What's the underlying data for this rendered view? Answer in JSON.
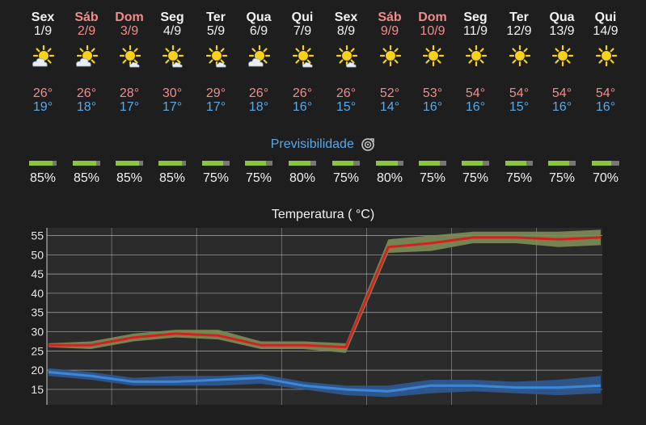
{
  "forecast": {
    "days": [
      {
        "name": "Sex",
        "date": "1/9",
        "max": "26°",
        "min": "19°",
        "weekend": false,
        "icon": "partly-cloudy-sun-icon"
      },
      {
        "name": "Sáb",
        "date": "2/9",
        "max": "26°",
        "min": "18°",
        "weekend": true,
        "icon": "partly-cloudy-sun-icon"
      },
      {
        "name": "Dom",
        "date": "3/9",
        "max": "28°",
        "min": "17°",
        "weekend": true,
        "icon": "sun-small-cloud-icon"
      },
      {
        "name": "Seg",
        "date": "4/9",
        "max": "30°",
        "min": "17°",
        "weekend": false,
        "icon": "sun-small-cloud-icon"
      },
      {
        "name": "Ter",
        "date": "5/9",
        "max": "29°",
        "min": "17°",
        "weekend": false,
        "icon": "sun-small-cloud-icon"
      },
      {
        "name": "Qua",
        "date": "6/9",
        "max": "26°",
        "min": "18°",
        "weekend": false,
        "icon": "partly-cloudy-sun-icon"
      },
      {
        "name": "Qui",
        "date": "7/9",
        "max": "26°",
        "min": "16°",
        "weekend": false,
        "icon": "sun-small-cloud-icon"
      },
      {
        "name": "Sex",
        "date": "8/9",
        "max": "26°",
        "min": "15°",
        "weekend": false,
        "icon": "sun-small-cloud-icon"
      },
      {
        "name": "Sáb",
        "date": "9/9",
        "max": "52°",
        "min": "14°",
        "weekend": true,
        "icon": "sun-icon"
      },
      {
        "name": "Dom",
        "date": "10/9",
        "max": "53°",
        "min": "16°",
        "weekend": true,
        "icon": "sun-icon"
      },
      {
        "name": "Seg",
        "date": "11/9",
        "max": "54°",
        "min": "16°",
        "weekend": false,
        "icon": "sun-icon"
      },
      {
        "name": "Ter",
        "date": "12/9",
        "max": "54°",
        "min": "15°",
        "weekend": false,
        "icon": "sun-icon"
      },
      {
        "name": "Qua",
        "date": "13/9",
        "max": "54°",
        "min": "16°",
        "weekend": false,
        "icon": "sun-icon"
      },
      {
        "name": "Qui",
        "date": "14/9",
        "max": "54°",
        "min": "16°",
        "weekend": false,
        "icon": "sun-icon"
      }
    ]
  },
  "predictability": {
    "title": "Previsibilidade",
    "icon": "target-refresh-icon",
    "colors": {
      "fill": "#8cc63f",
      "track": "#777777"
    },
    "values": [
      {
        "label": "85%",
        "fraction": 0.85
      },
      {
        "label": "85%",
        "fraction": 0.85
      },
      {
        "label": "85%",
        "fraction": 0.85
      },
      {
        "label": "85%",
        "fraction": 0.85
      },
      {
        "label": "75%",
        "fraction": 0.75
      },
      {
        "label": "75%",
        "fraction": 0.75
      },
      {
        "label": "80%",
        "fraction": 0.8
      },
      {
        "label": "75%",
        "fraction": 0.75
      },
      {
        "label": "80%",
        "fraction": 0.8
      },
      {
        "label": "75%",
        "fraction": 0.75
      },
      {
        "label": "75%",
        "fraction": 0.75
      },
      {
        "label": "75%",
        "fraction": 0.75
      },
      {
        "label": "75%",
        "fraction": 0.75
      },
      {
        "label": "70%",
        "fraction": 0.7
      }
    ]
  },
  "chart_data": {
    "type": "line",
    "title": "Temperatura ( °C)",
    "xlabel": "",
    "ylabel": "",
    "ylim": [
      11,
      57
    ],
    "yticks": [
      15,
      20,
      25,
      30,
      35,
      40,
      45,
      50,
      55
    ],
    "grid": true,
    "legend": "none",
    "x": [
      "1/9",
      "2/9",
      "3/9",
      "4/9",
      "5/9",
      "6/9",
      "7/9",
      "8/9",
      "9/9",
      "10/9",
      "11/9",
      "12/9",
      "13/9",
      "14/9"
    ],
    "series": [
      {
        "color": "#d62020",
        "band_color": "#7d8c55",
        "values": [
          26.5,
          26.5,
          28.5,
          29.5,
          29,
          26.5,
          26.5,
          26,
          52,
          53,
          54.5,
          54.5,
          54,
          54.5
        ],
        "band_low": [
          26,
          25.5,
          27.5,
          28.5,
          28,
          25.5,
          25.5,
          24.5,
          50.5,
          51,
          53,
          53,
          52,
          52.5
        ],
        "band_high": [
          27,
          27.5,
          29.5,
          30.5,
          30.5,
          27.5,
          27.5,
          27,
          54,
          55,
          56,
          56,
          56,
          56.5
        ]
      },
      {
        "color": "#3d86d8",
        "band_color": "#2f5a94",
        "values": [
          19.5,
          18.5,
          17,
          17,
          17.5,
          18,
          16,
          15,
          14.5,
          16,
          16,
          15.5,
          15.5,
          16
        ],
        "band_low": [
          18.5,
          17.5,
          16,
          16,
          16,
          16.5,
          15,
          13.5,
          13,
          14,
          14.5,
          14,
          13.5,
          14
        ],
        "band_high": [
          20.5,
          19.5,
          18,
          18.5,
          18.5,
          19,
          17,
          16,
          16,
          17.5,
          17.5,
          17,
          17.5,
          18.5
        ]
      }
    ],
    "colors": {
      "background": "#2b2b2b",
      "grid": "#e0e0e0",
      "axis_text": "#e6e6e6"
    }
  }
}
